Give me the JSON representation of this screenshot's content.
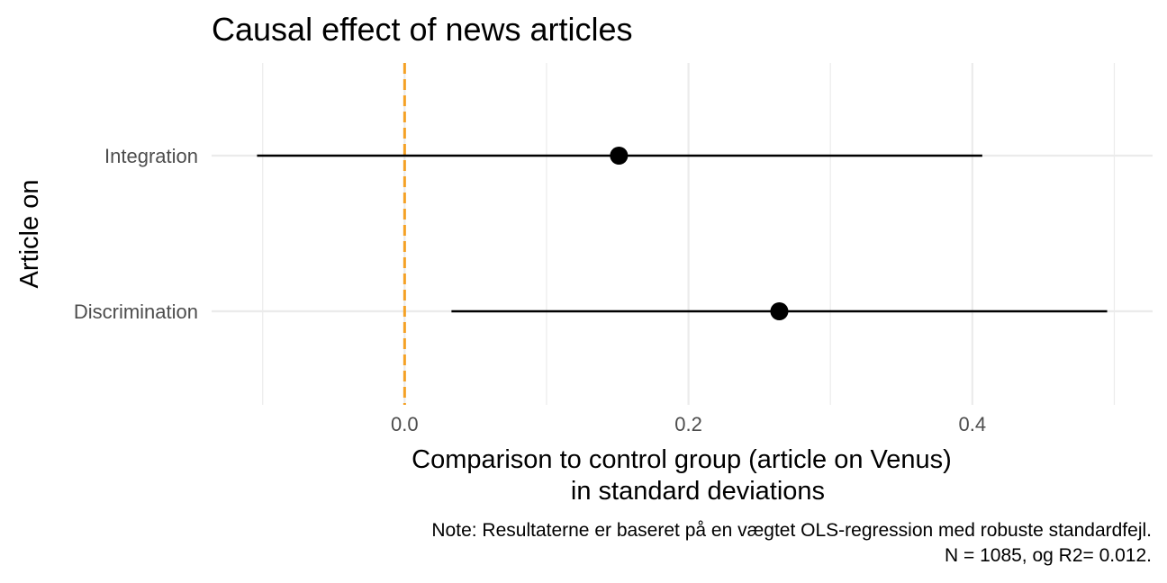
{
  "chart_data": {
    "type": "scatter",
    "title": "Causal effect of news articles",
    "xlabel_line1": "Comparison to control group (article on Venus)",
    "xlabel_line2": "in standard deviations",
    "ylabel": "Article on",
    "caption_line1": "Note: Resultaterne er baseret på en vægtet OLS-regression med robuste standardfejl.",
    "caption_line2": "N = 1085, og R2= 0.012.",
    "x_ticks": [
      0.0,
      0.2,
      0.4
    ],
    "x_tick_labels": [
      "0.0",
      "0.2",
      "0.4"
    ],
    "xlim": [
      -0.136,
      0.527
    ],
    "reference_line": {
      "x": 0.0,
      "color": "#f4a125",
      "style": "dashed"
    },
    "grid": true,
    "points": [
      {
        "category": "Integration",
        "estimate": 0.151,
        "ci_low": -0.104,
        "ci_high": 0.407
      },
      {
        "category": "Discrimination",
        "estimate": 0.264,
        "ci_low": 0.033,
        "ci_high": 0.495
      }
    ],
    "point_color": "#000000"
  }
}
